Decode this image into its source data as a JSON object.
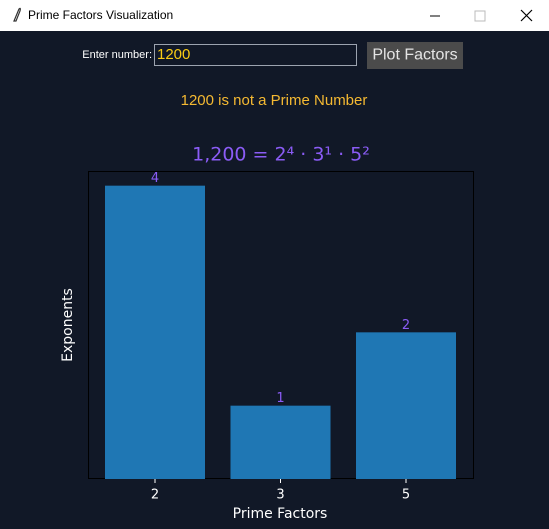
{
  "window": {
    "title": "Prime Factors Visualization"
  },
  "form": {
    "label": "Enter number:",
    "input": "1200",
    "button": "Plot Factors"
  },
  "message": "1200 is not a Prime Number",
  "chart_data": {
    "type": "bar",
    "title": "1,200 = 2⁴ · 3¹ · 5²",
    "categories": [
      "2",
      "3",
      "5"
    ],
    "values": [
      4,
      1,
      2
    ],
    "color": "#1f77b4",
    "xlabel": "Prime Factors",
    "ylabel": "Exponents",
    "ylim": [
      0,
      4.2
    ]
  }
}
